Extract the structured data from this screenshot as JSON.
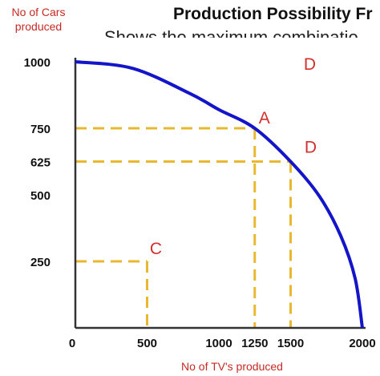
{
  "chart_data": {
    "type": "line",
    "title": "Production Possibility Fr",
    "subtitle": "Shows the maximum combinatio",
    "xlabel": "No of TV's produced",
    "ylabel": "No of Cars produced",
    "xlim": [
      0,
      2000
    ],
    "ylim": [
      0,
      1000
    ],
    "x_ticks": [
      "0",
      "500",
      "1000",
      "1250",
      "1500",
      "2000"
    ],
    "x_tick_values": [
      0,
      500,
      1000,
      1250,
      1500,
      2000
    ],
    "y_ticks": [
      "1000",
      "750",
      "625",
      "500",
      "250"
    ],
    "y_tick_values": [
      1000,
      750,
      625,
      500,
      250
    ],
    "series": [
      {
        "color": "#1414c8",
        "x": [
          0,
          400,
          800,
          1000,
          1250,
          1500,
          1700,
          1850,
          1950,
          2000
        ],
        "y": [
          1000,
          975,
          880,
          820,
          750,
          625,
          495,
          345,
          185,
          0
        ]
      }
    ],
    "points": [
      {
        "label": "A",
        "x": 1250,
        "y": 750
      },
      {
        "label": "D",
        "x": 1500,
        "y": 625
      },
      {
        "label": "C",
        "x": 500,
        "y": 250
      },
      {
        "label": "D",
        "x": 1550,
        "y": 900
      }
    ],
    "guide_color": "#e8b830",
    "axis_color": "#333333",
    "curve_color": "#1414c8",
    "label_color": "#d32f2f",
    "grid": false
  }
}
